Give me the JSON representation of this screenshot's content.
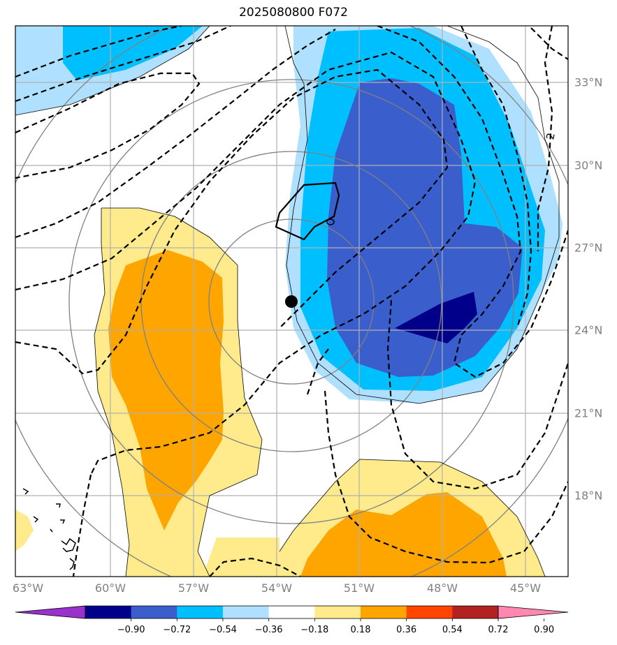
{
  "title": "2025080800 F072",
  "longitude_labels": [
    "63°W",
    "60°W",
    "57°W",
    "54°W",
    "51°W",
    "48°W",
    "45°W"
  ],
  "latitude_labels": [
    "33°N",
    "30°N",
    "27°N",
    "24°N",
    "21°N",
    "18°N"
  ],
  "contour_label": "2",
  "storm_center": {
    "lon": "53.7°W",
    "lat": "25.0°N"
  },
  "colorbar": {
    "ticks": [
      "−0.90",
      "−0.72",
      "−0.54",
      "−0.36",
      "−0.18",
      "0.18",
      "0.36",
      "0.54",
      "0.72",
      "0.90"
    ],
    "colors": [
      "#9932CC",
      "#00008B",
      "#3A5FCD",
      "#00BFFF",
      "#B0E0FF",
      "#FFFFFF",
      "#FFEB8C",
      "#FFA500",
      "#FF4500",
      "#B22222",
      "#FF88B0"
    ]
  },
  "colors": {
    "deep_navy": "#00008B",
    "royal_blue": "#3A5FCD",
    "sky_blue": "#00BFFF",
    "light_blue": "#B0E0FF",
    "light_yellow": "#FFEB8C",
    "orange": "#FFA500",
    "grid": "#B0B0B0",
    "range_ring": "#808080"
  }
}
